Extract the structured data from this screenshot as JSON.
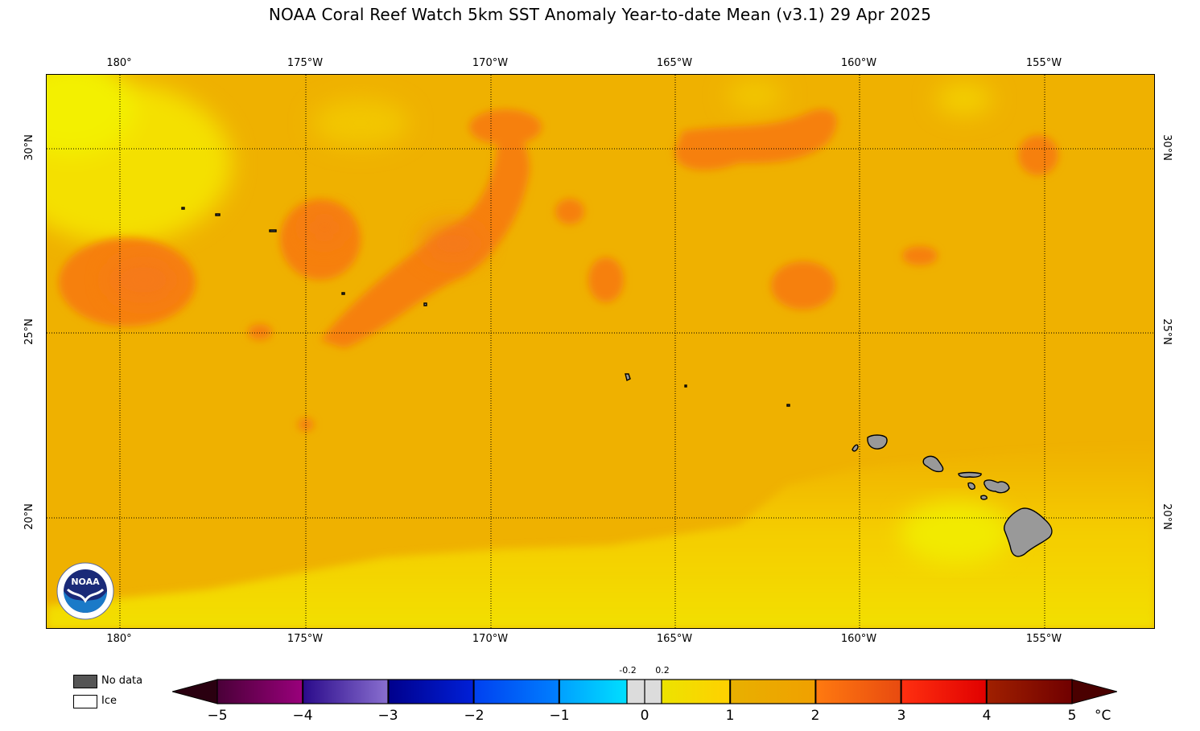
{
  "title": "NOAA Coral Reef Watch 5km SST Anomaly Year-to-date Mean  (v3.1)   29 Apr 2025",
  "longitude_labels": [
    "180°",
    "175°W",
    "170°W",
    "165°W",
    "160°W",
    "155°W"
  ],
  "latitude_labels": [
    "30°N",
    "25°N",
    "20°N"
  ],
  "legend": {
    "no_data": "No data",
    "ice": "Ice",
    "no_data_color": "#555555",
    "ice_color": "#ffffff"
  },
  "colorbar": {
    "ticks": [
      "−5",
      "−4",
      "−3",
      "−2",
      "−1",
      "0",
      "1",
      "2",
      "3",
      "4",
      "5"
    ],
    "small_ticks": [
      "-0.2",
      "0.2"
    ],
    "unit": "°C",
    "segments": [
      [
        "#4a0038",
        "#9a007c"
      ],
      [
        "#2a0a8a",
        "#8a70d0"
      ],
      [
        "#00008c",
        "#0020d8"
      ],
      [
        "#0040f0",
        "#0080ff"
      ],
      [
        "#00a0ff",
        "#00f0ff"
      ],
      [
        "#e8e800",
        "#ffd000"
      ],
      [
        "#e8b000",
        "#f0a000"
      ],
      [
        "#ff7a10",
        "#e84a10"
      ],
      [
        "#ff3010",
        "#e00000"
      ],
      [
        "#a02000",
        "#700000"
      ]
    ]
  },
  "logo": {
    "text": "NOAA"
  }
}
